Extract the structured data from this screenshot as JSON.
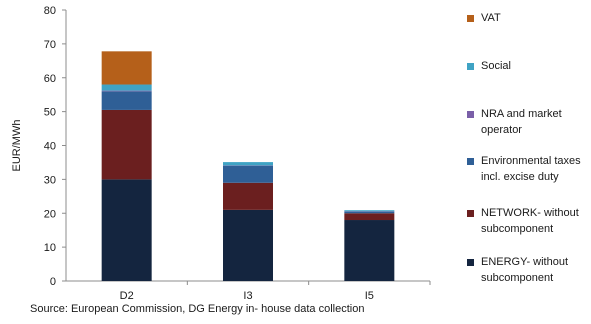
{
  "chart_data": {
    "type": "bar",
    "stacked": true,
    "title": "",
    "xlabel": "",
    "ylabel": "EUR/MWh",
    "ylim": [
      0,
      80
    ],
    "y_ticks": [
      0,
      10,
      20,
      30,
      40,
      50,
      60,
      70,
      80
    ],
    "grid": false,
    "legend_position": "right",
    "categories": [
      "D2",
      "I3",
      "I5"
    ],
    "series": [
      {
        "name": "ENERGY- without subcomponent",
        "legend_lines": [
          "ENERGY- without",
          "subcomponent"
        ],
        "color": "#14253f",
        "values": [
          30,
          21,
          18
        ]
      },
      {
        "name": "NETWORK- without subcomponent",
        "legend_lines": [
          "NETWORK- without",
          "subcomponent"
        ],
        "color": "#6b1f1f",
        "values": [
          20.5,
          8,
          2
        ]
      },
      {
        "name": "Environmental taxes incl. excise duty",
        "legend_lines": [
          "Environmental taxes",
          "incl. excise duty"
        ],
        "color": "#2f5f96",
        "values": [
          5.5,
          5,
          0.5
        ]
      },
      {
        "name": "NRA and market operator",
        "legend_lines": [
          "NRA and market",
          "operator"
        ],
        "color": "#7a5fa8",
        "values": [
          0.2,
          0.1,
          0.1
        ]
      },
      {
        "name": "Social",
        "legend_lines": [
          "Social"
        ],
        "color": "#3fa3c4",
        "values": [
          1.8,
          1,
          0.3
        ]
      },
      {
        "name": "VAT",
        "legend_lines": [
          "VAT"
        ],
        "color": "#b5601a",
        "values": [
          9.8,
          0,
          0
        ]
      }
    ],
    "source": "Source: European Commission, DG Energy in- house data collection"
  }
}
